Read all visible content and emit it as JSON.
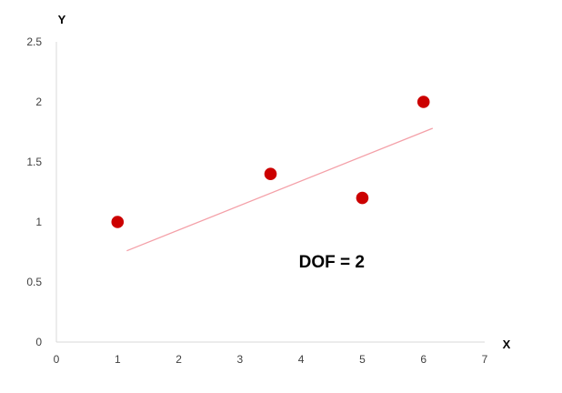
{
  "chart_data": {
    "type": "scatter",
    "title": "",
    "xlabel": "X",
    "ylabel": "Y",
    "xlim": [
      0,
      7
    ],
    "ylim": [
      0,
      2.5
    ],
    "x_ticks": [
      "0",
      "1",
      "2",
      "3",
      "4",
      "5",
      "6",
      "7"
    ],
    "y_ticks": [
      "0",
      "0.5",
      "1",
      "1.5",
      "2",
      "2.5"
    ],
    "grid": false,
    "series": [
      {
        "points": [
          {
            "x": 1,
            "y": 1.0
          },
          {
            "x": 3.5,
            "y": 1.4
          },
          {
            "x": 5,
            "y": 1.2
          },
          {
            "x": 6,
            "y": 2.0
          }
        ],
        "color": "#cc0000"
      }
    ],
    "trendline": {
      "x_start": 1.15,
      "y_start": 0.76,
      "x_end": 6.15,
      "y_end": 1.78,
      "color": "#f4a0a8"
    },
    "annotations": [
      {
        "text": "DOF = 2",
        "x": 4.5,
        "y": 0.62
      }
    ],
    "axis_color": "#d9d9d9"
  }
}
